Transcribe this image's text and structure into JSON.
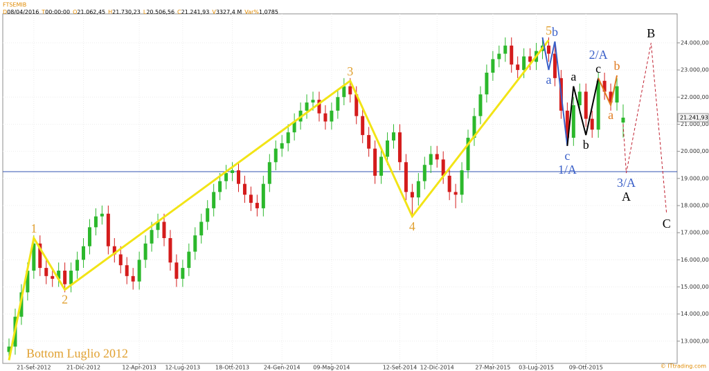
{
  "chart_data": {
    "type": "candlestick",
    "title": "FTSEMIB",
    "info": [
      {
        "label": "D",
        "value": "08/04/2016"
      },
      {
        "label": "T",
        "value": "00:00:00"
      },
      {
        "label": "O",
        "value": "21.062,45"
      },
      {
        "label": "H",
        "value": "21.730,23"
      },
      {
        "label": "L",
        "value": "20.506,56"
      },
      {
        "label": "C",
        "value": "21.241,93"
      },
      {
        "label": "V",
        "value": "3327,4 M"
      },
      {
        "label": "Var%",
        "value": "1,0785"
      }
    ],
    "watermark": "© ITtrading.com",
    "categories": [
      null,
      null,
      null,
      null,
      "21-Set-2012",
      null,
      null,
      null,
      null,
      null,
      null,
      null,
      "21-Dic-2012",
      null,
      null,
      null,
      null,
      null,
      null,
      null,
      null,
      "12-Apr-2013",
      null,
      null,
      null,
      null,
      null,
      null,
      "12-Lug-2013",
      null,
      null,
      null,
      null,
      null,
      null,
      null,
      "18-Ott-2013",
      null,
      null,
      null,
      null,
      null,
      null,
      null,
      "24-Gen-2014",
      null,
      null,
      null,
      null,
      null,
      null,
      null,
      "09-Mag-2014",
      null,
      null,
      null,
      null,
      null,
      null,
      null,
      null,
      null,
      null,
      "12-Set-2014",
      null,
      null,
      null,
      null,
      null,
      "12-Dic-2014",
      null,
      null,
      null,
      null,
      null,
      null,
      null,
      null,
      "27-Mar-2015",
      null,
      null,
      null,
      null,
      null,
      null,
      "03-Lug-2015",
      null,
      null,
      null,
      null,
      null,
      null,
      null,
      "09-Ott-2015",
      null,
      null,
      null,
      null,
      null,
      null
    ],
    "open": [
      12600,
      12800,
      13900,
      14800,
      15600,
      16600,
      15700,
      15400,
      15300,
      15600,
      15100,
      15600,
      16000,
      16500,
      17200,
      17600,
      17700,
      16500,
      16200,
      15800,
      15400,
      15200,
      16000,
      16600,
      17100,
      17400,
      16800,
      15900,
      15300,
      15700,
      16300,
      16900,
      17400,
      17900,
      18500,
      18900,
      19200,
      19300,
      18800,
      18400,
      18100,
      17900,
      18800,
      19600,
      20100,
      20300,
      20700,
      21100,
      21500,
      21800,
      21900,
      21400,
      21100,
      21500,
      22000,
      22400,
      22100,
      21300,
      20600,
      20100,
      19100,
      19800,
      20400,
      20700,
      19600,
      18500,
      18300,
      18900,
      19500,
      19900,
      19700,
      19100,
      18500,
      18400,
      19300,
      20500,
      21300,
      22100,
      22900,
      23400,
      23600,
      23900,
      23200,
      23000,
      23500,
      23300,
      23700,
      23900,
      23600,
      22700,
      21500,
      20500,
      21700,
      22200,
      21200,
      20800,
      22600,
      22200,
      21800,
      21062.45
    ],
    "high": [
      13100,
      14200,
      15100,
      15900,
      16900,
      16900,
      16000,
      15700,
      15900,
      15900,
      15900,
      16300,
      16800,
      17500,
      17900,
      18000,
      18000,
      16800,
      16500,
      16100,
      15700,
      16300,
      16900,
      17400,
      17700,
      17700,
      17100,
      16200,
      16000,
      16600,
      17200,
      17700,
      18200,
      18800,
      19200,
      19500,
      19600,
      19600,
      19100,
      18700,
      18400,
      19100,
      19900,
      20400,
      20600,
      21000,
      21400,
      21800,
      22100,
      22200,
      22200,
      21700,
      21800,
      22300,
      22700,
      22700,
      22400,
      21600,
      20900,
      20400,
      20100,
      20700,
      21000,
      21000,
      19900,
      18800,
      19200,
      19800,
      20200,
      20200,
      20000,
      19400,
      18800,
      19600,
      20800,
      21600,
      22400,
      23200,
      23700,
      23900,
      24200,
      24200,
      23500,
      23800,
      23800,
      24000,
      24200,
      24200,
      23900,
      23000,
      21800,
      22000,
      22500,
      22500,
      21500,
      22900,
      22900,
      22500,
      22700,
      21730.23
    ],
    "low": [
      12300,
      12500,
      13600,
      14500,
      15300,
      15400,
      15100,
      15000,
      15000,
      14800,
      14800,
      15300,
      15700,
      16200,
      16900,
      17300,
      16200,
      15900,
      15500,
      15100,
      14900,
      14900,
      15700,
      16300,
      16800,
      16500,
      15600,
      15000,
      15000,
      15400,
      16000,
      16600,
      17100,
      17600,
      18200,
      18600,
      18900,
      18500,
      18100,
      17800,
      17600,
      17600,
      18500,
      19300,
      19800,
      20000,
      20400,
      20800,
      21200,
      21500,
      21100,
      20800,
      20800,
      21200,
      21700,
      21800,
      21000,
      20300,
      19800,
      18800,
      18800,
      19500,
      20100,
      19300,
      18200,
      17600,
      18000,
      18600,
      19200,
      19400,
      18800,
      18200,
      17900,
      18100,
      19000,
      20200,
      21000,
      21800,
      22600,
      23100,
      23300,
      22900,
      22700,
      22700,
      23000,
      23000,
      23400,
      23300,
      22400,
      21200,
      20200,
      20200,
      21400,
      20900,
      20500,
      20500,
      21900,
      21500,
      21500,
      20506.56
    ],
    "close": [
      12800,
      13900,
      14800,
      15600,
      16600,
      15700,
      15400,
      15300,
      15600,
      15100,
      15600,
      16000,
      16500,
      17200,
      17600,
      17700,
      16500,
      16200,
      15800,
      15400,
      15200,
      16000,
      16600,
      17100,
      17400,
      16800,
      15900,
      15300,
      15700,
      16300,
      16900,
      17400,
      17900,
      18500,
      18900,
      19200,
      19300,
      18800,
      18400,
      18100,
      17900,
      18800,
      19600,
      20100,
      20300,
      20700,
      21100,
      21500,
      21800,
      21900,
      21400,
      21100,
      21500,
      22000,
      22400,
      22100,
      21300,
      20600,
      20100,
      19100,
      19800,
      20400,
      20700,
      19600,
      18500,
      18300,
      18900,
      19500,
      19900,
      19700,
      19100,
      18500,
      18400,
      19300,
      20500,
      21300,
      22100,
      22900,
      23400,
      23600,
      23900,
      23200,
      23000,
      23500,
      23300,
      23700,
      23900,
      23600,
      22700,
      21500,
      20500,
      21700,
      22200,
      21200,
      20800,
      22600,
      22200,
      21800,
      22400,
      21241.93
    ],
    "up_color": "#2cb82c",
    "down_color": "#d41c1c",
    "ylim": [
      12180,
      25070
    ],
    "yticks": [
      {
        "value": 13000,
        "label": "13.000,00"
      },
      {
        "value": 14000,
        "label": "14.000,00"
      },
      {
        "value": 15000,
        "label": "15.000,00"
      },
      {
        "value": 16000,
        "label": "16.000,00"
      },
      {
        "value": 17000,
        "label": "17.000,00"
      },
      {
        "value": 18000,
        "label": "18.000,00"
      },
      {
        "value": 19000,
        "label": "19.000,00"
      },
      {
        "value": 20000,
        "label": "20.000,00"
      },
      {
        "value": 21000,
        "label": "21.000,00"
      },
      {
        "value": 22000,
        "label": "22.000,00"
      },
      {
        "value": 23000,
        "label": "23.000,00"
      },
      {
        "value": 24000,
        "label": "24.000,00"
      }
    ],
    "last_price": {
      "value": 21241.93,
      "label": "21.241,93"
    },
    "hline": {
      "value": 19250,
      "color": "#3050b0"
    },
    "grid": true,
    "waves": [
      {
        "color": "#f2e416",
        "width": 3,
        "dashed": false,
        "points": [
          {
            "x": 0,
            "y": 12300,
            "labels": [
              {
                "text": "Bottom Luglio 2012",
                "color": "#e0a030"
              }
            ]
          },
          {
            "x": 4,
            "y": 16800,
            "labels": [
              {
                "text": "1",
                "color": "#e0a030"
              }
            ]
          },
          {
            "x": 9,
            "y": 14900,
            "labels": [
              {
                "text": "2",
                "color": "#e0a030"
              }
            ]
          },
          {
            "x": 55,
            "y": 22600,
            "labels": [
              {
                "text": "3",
                "color": "#e0a030"
              }
            ]
          },
          {
            "x": 65,
            "y": 17600,
            "labels": [
              {
                "text": "4",
                "color": "#e0a030"
              }
            ]
          },
          {
            "x": 87,
            "y": 24100,
            "labels": [
              {
                "text": "5",
                "color": "#e0a030"
              }
            ]
          }
        ]
      },
      {
        "color": "#3a5fc8",
        "width": 2,
        "dashed": false,
        "points": [
          {
            "x": 86,
            "y": 24200
          },
          {
            "x": 87,
            "y": 23000,
            "labels": [
              {
                "text": "a",
                "color": "#3a5fc8"
              }
            ]
          },
          {
            "x": 88,
            "y": 24050,
            "labels": [
              {
                "text": "b",
                "color": "#3a5fc8"
              }
            ]
          },
          {
            "x": 90,
            "y": 20200,
            "labels": [
              {
                "text": "c",
                "color": "#3a5fc8"
              },
              {
                "text": "1/A",
                "color": "#3a5fc8"
              }
            ]
          }
        ]
      },
      {
        "color": "#000000",
        "width": 2,
        "dashed": false,
        "points": [
          {
            "x": 90,
            "y": 20200
          },
          {
            "x": 91,
            "y": 22400,
            "labels": [
              {
                "text": "a",
                "color": "#000000"
              }
            ]
          },
          {
            "x": 93,
            "y": 20600,
            "labels": [
              {
                "text": "b",
                "color": "#000000"
              }
            ]
          },
          {
            "x": 95,
            "y": 22700,
            "labels": [
              {
                "text": "c",
                "color": "#000000"
              },
              {
                "text": "2/A",
                "color": "#3a5fc8"
              }
            ]
          }
        ]
      },
      {
        "color": "#e07a20",
        "width": 2,
        "dashed": false,
        "points": [
          {
            "x": 95,
            "y": 22700
          },
          {
            "x": 97,
            "y": 21700,
            "labels": [
              {
                "text": "a",
                "color": "#e07a20"
              }
            ]
          },
          {
            "x": 98,
            "y": 22800,
            "labels": [
              {
                "text": "b",
                "color": "#e07a20"
              }
            ]
          }
        ]
      },
      {
        "color": "#c02030",
        "width": 1,
        "dashed": true,
        "points": [
          {
            "x": 99,
            "y": 21000
          },
          {
            "x": 99.5,
            "y": 19200,
            "labels": [
              {
                "text": "3/A",
                "color": "#3a5fc8"
              },
              {
                "text": "A",
                "color": "#000000"
              }
            ]
          },
          {
            "x": 103.5,
            "y": 24000,
            "labels": [
              {
                "text": "B",
                "color": "#000000"
              }
            ]
          },
          {
            "x": 106,
            "y": 17700,
            "labels": [
              {
                "text": "C",
                "color": "#000000"
              }
            ]
          }
        ]
      }
    ]
  }
}
